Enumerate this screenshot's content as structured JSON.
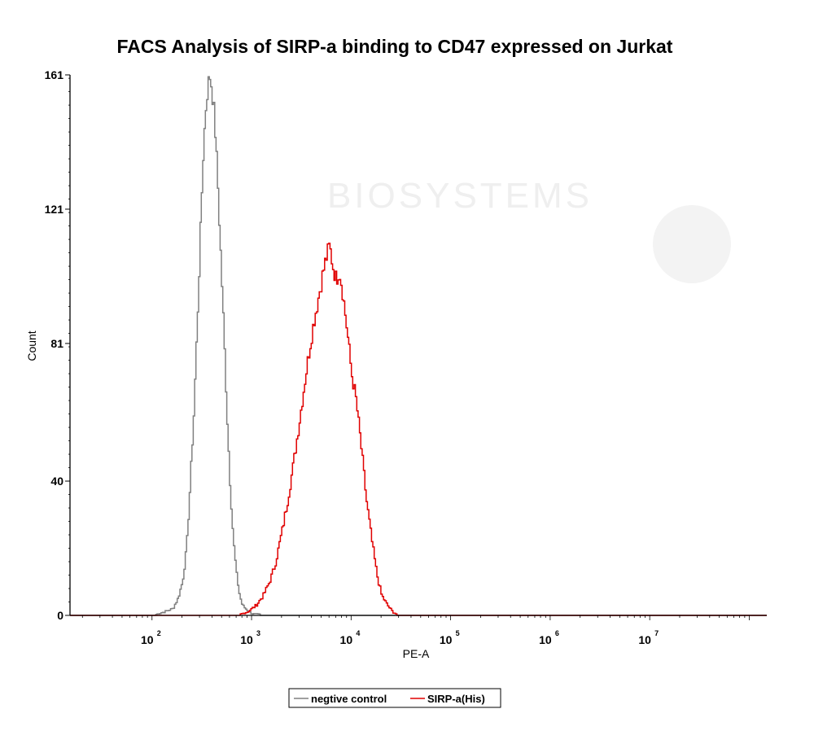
{
  "chart_data": {
    "type": "line",
    "title": "FACS Analysis of SIRP-a binding to CD47 expressed on Jurkat",
    "xlabel": "PE-A",
    "ylabel": "Count",
    "x_scale": "log",
    "xlim": [
      15,
      150000000
    ],
    "ylim": [
      0,
      161
    ],
    "y_ticks": [
      0,
      40,
      81,
      121,
      161
    ],
    "x_ticks": [
      {
        "value": 100,
        "base": "10",
        "exp": "2"
      },
      {
        "value": 1000,
        "base": "10",
        "exp": "3"
      },
      {
        "value": 10000,
        "base": "10",
        "exp": "4"
      },
      {
        "value": 100000,
        "base": "10",
        "exp": "5"
      },
      {
        "value": 1000000,
        "base": "10",
        "exp": "6"
      },
      {
        "value": 10000000,
        "base": "10",
        "exp": "7"
      }
    ],
    "legend_position": "bottom",
    "watermark": "BIOSYSTEMS",
    "series": [
      {
        "name": "negtive control",
        "color": "#808080",
        "x": [
          15,
          60,
          100,
          130,
          160,
          180,
          200,
          220,
          240,
          260,
          280,
          300,
          320,
          340,
          360,
          380,
          400,
          420,
          450,
          480,
          520,
          560,
          600,
          650,
          700,
          750,
          800,
          900,
          1000,
          1200,
          1500,
          2000,
          3000,
          150000000
        ],
        "y": [
          0,
          0,
          0,
          1,
          2,
          5,
          10,
          20,
          40,
          60,
          85,
          110,
          135,
          150,
          158,
          161,
          155,
          148,
          130,
          110,
          85,
          60,
          40,
          22,
          12,
          6,
          3,
          1.5,
          0.5,
          0.3,
          0,
          0,
          0,
          0
        ]
      },
      {
        "name": "SIRP-a(His)",
        "color": "#e00000",
        "x": [
          15,
          700,
          900,
          1100,
          1300,
          1500,
          1700,
          2000,
          2300,
          2600,
          3000,
          3400,
          3800,
          4200,
          4600,
          5000,
          5500,
          6000,
          6500,
          7000,
          7500,
          8000,
          9000,
          10000,
          11000,
          12000,
          13000,
          14000,
          16000,
          18000,
          20000,
          23000,
          26000,
          30000,
          150000000
        ],
        "y": [
          0,
          0,
          1,
          3,
          6,
          10,
          15,
          25,
          35,
          45,
          58,
          70,
          80,
          88,
          94,
          100,
          106,
          110,
          104,
          100,
          103,
          98,
          85,
          72,
          65,
          55,
          45,
          35,
          22,
          12,
          6,
          3,
          1,
          0,
          0
        ]
      }
    ]
  }
}
